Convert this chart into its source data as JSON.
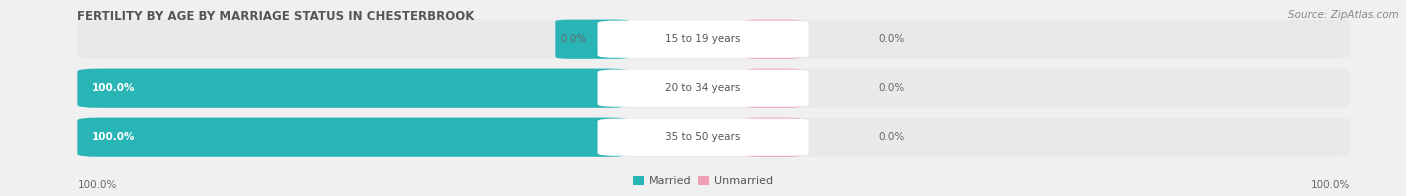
{
  "title": "FERTILITY BY AGE BY MARRIAGE STATUS IN CHESTERBROOK",
  "source": "Source: ZipAtlas.com",
  "categories": [
    "15 to 19 years",
    "20 to 34 years",
    "35 to 50 years"
  ],
  "married_values": [
    0.0,
    100.0,
    100.0
  ],
  "unmarried_values": [
    0.0,
    0.0,
    0.0
  ],
  "married_color": "#29b5b5",
  "unmarried_color": "#f0a0b5",
  "bar_bg_color": "#e8e9ea",
  "label_bg_color": "#ffffff",
  "title_fontsize": 8.5,
  "source_fontsize": 7.5,
  "label_fontsize": 7.5,
  "category_fontsize": 7.5,
  "legend_fontsize": 8,
  "left_axis_label": "100.0%",
  "right_axis_label": "100.0%",
  "fig_bg_color": "#f0f0f0"
}
